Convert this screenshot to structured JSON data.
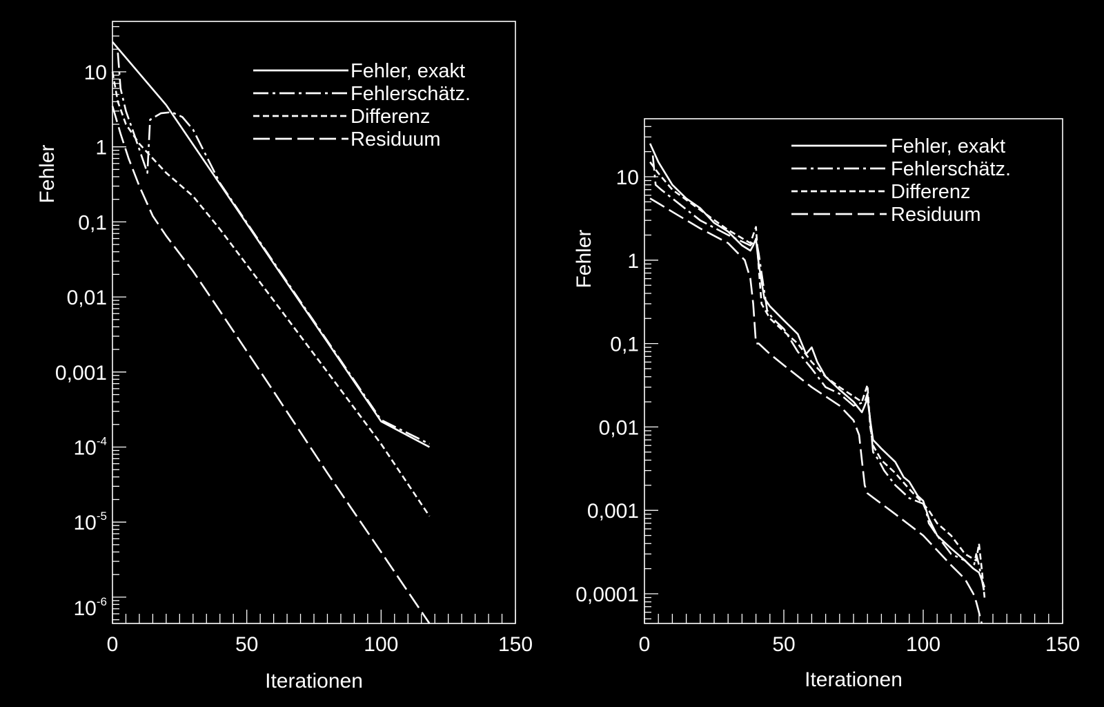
{
  "colors": {
    "background": "#000000",
    "foreground": "#ffffff"
  },
  "chart_data": [
    {
      "type": "line",
      "title": "",
      "xlabel": "Iterationen",
      "ylabel": "Fehler",
      "xlim": [
        0,
        150
      ],
      "ylim": [
        1e-06,
        50
      ],
      "yscale": "log",
      "grid": false,
      "legend_position": "top-right",
      "x_tick_labels": [
        "0",
        "50",
        "100",
        "150"
      ],
      "y_tick_labels": [
        {
          "base": "10",
          "exp": "-6"
        },
        {
          "base": "10",
          "exp": "-5"
        },
        {
          "base": "10",
          "exp": "-4"
        },
        {
          "base": "0,001",
          "exp": ""
        },
        {
          "base": "0,01",
          "exp": ""
        },
        {
          "base": "0,1",
          "exp": ""
        },
        {
          "base": "1",
          "exp": ""
        },
        {
          "base": "10",
          "exp": ""
        }
      ],
      "series": [
        {
          "name": "Fehler, exakt",
          "dash": "solid",
          "x": [
            0,
            20,
            40,
            60,
            80,
            100,
            118
          ],
          "y": [
            25,
            3.6,
            0.32,
            0.028,
            0.0025,
            0.00022,
            0.0001
          ]
        },
        {
          "name": "Fehlerschätz.",
          "dash": "dashdot",
          "x": [
            2,
            3,
            5,
            8,
            13,
            14,
            18,
            22,
            26,
            30,
            40,
            60,
            80,
            100,
            118
          ],
          "y": [
            18,
            6,
            3,
            1.5,
            0.45,
            2.3,
            2.8,
            2.9,
            2.5,
            1.7,
            0.33,
            0.029,
            0.0026,
            0.00023,
            0.00011
          ]
        },
        {
          "name": "Differenz",
          "dash": "dashed",
          "x": [
            0,
            2,
            5,
            10,
            15,
            20,
            30,
            40,
            60,
            80,
            100,
            118
          ],
          "y": [
            10,
            4,
            2,
            1.1,
            0.7,
            0.45,
            0.22,
            0.08,
            0.009,
            0.001,
            0.00011,
            1.2e-05
          ]
        },
        {
          "name": "Residuum",
          "dash": "longdash",
          "x": [
            0,
            3,
            6,
            10,
            15,
            20,
            30,
            40,
            60,
            80,
            100,
            118
          ],
          "y": [
            3.5,
            1.5,
            0.7,
            0.3,
            0.12,
            0.065,
            0.022,
            0.0065,
            0.00055,
            4.5e-05,
            4e-06,
            1.6e-07
          ]
        }
      ]
    },
    {
      "type": "line",
      "title": "",
      "xlabel": "Iterationen",
      "ylabel": "Fehler",
      "xlim": [
        0,
        150
      ],
      "ylim": [
        5e-05,
        50
      ],
      "yscale": "log",
      "grid": false,
      "legend_position": "top-right",
      "x_tick_labels": [
        "0",
        "50",
        "100",
        "150"
      ],
      "y_tick_labels": [
        {
          "base": "0,0001",
          "exp": ""
        },
        {
          "base": "0,001",
          "exp": ""
        },
        {
          "base": "0,01",
          "exp": ""
        },
        {
          "base": "0,1",
          "exp": ""
        },
        {
          "base": "1",
          "exp": ""
        },
        {
          "base": "10",
          "exp": ""
        }
      ],
      "series": [
        {
          "name": "Fehler, exakt",
          "dash": "solid",
          "x": [
            2,
            5,
            10,
            15,
            20,
            25,
            30,
            35,
            38,
            39,
            40,
            41,
            43,
            45,
            50,
            55,
            58,
            60,
            62,
            65,
            70,
            75,
            78,
            79,
            80,
            81,
            82,
            85,
            90,
            93,
            95,
            98,
            100,
            102,
            105,
            110,
            115,
            118,
            120,
            122
          ],
          "y": [
            25,
            15,
            8,
            5.5,
            4.2,
            2.8,
            2.2,
            1.5,
            1.3,
            1.5,
            1.8,
            0.9,
            0.35,
            0.28,
            0.19,
            0.13,
            0.075,
            0.09,
            0.06,
            0.04,
            0.028,
            0.02,
            0.015,
            0.018,
            0.022,
            0.012,
            0.007,
            0.0055,
            0.0038,
            0.0025,
            0.0022,
            0.0015,
            0.0013,
            0.0008,
            0.0005,
            0.00035,
            0.00025,
            0.0002,
            0.00018,
            0.00012
          ]
        },
        {
          "name": "Fehlerschätz.",
          "dash": "dashdot",
          "x": [
            3,
            4,
            6,
            10,
            20,
            30,
            38,
            40,
            41,
            42,
            44,
            46,
            50,
            55,
            60,
            65,
            70,
            75,
            79,
            80,
            81,
            82,
            84,
            86,
            90,
            95,
            100,
            101,
            102,
            105,
            110,
            115,
            118,
            119,
            120,
            121,
            122
          ],
          "y": [
            18,
            8,
            7,
            5.5,
            3,
            2,
            1.5,
            1.8,
            1.2,
            0.7,
            0.25,
            0.2,
            0.15,
            0.08,
            0.05,
            0.03,
            0.025,
            0.018,
            0.02,
            0.025,
            0.012,
            0.005,
            0.004,
            0.003,
            0.002,
            0.0014,
            0.0012,
            0.001,
            0.0007,
            0.0005,
            0.0003,
            0.00025,
            0.0002,
            0.0003,
            0.00022,
            0.00015,
            0.0001
          ]
        },
        {
          "name": "Differenz",
          "dash": "dashed",
          "x": [
            2,
            5,
            10,
            20,
            30,
            38,
            40,
            41,
            42,
            45,
            50,
            55,
            60,
            65,
            70,
            78,
            80,
            81,
            82,
            85,
            90,
            95,
            100,
            102,
            105,
            110,
            115,
            119,
            120,
            121,
            122
          ],
          "y": [
            15,
            11,
            7,
            4,
            2.3,
            1.6,
            2.5,
            0.8,
            0.3,
            0.2,
            0.14,
            0.1,
            0.06,
            0.04,
            0.03,
            0.02,
            0.032,
            0.01,
            0.006,
            0.004,
            0.0028,
            0.0018,
            0.0012,
            0.001,
            0.0007,
            0.0005,
            0.0003,
            0.00025,
            0.0004,
            0.0002,
            9e-05
          ]
        },
        {
          "name": "Residuum",
          "dash": "longdash",
          "x": [
            2,
            5,
            10,
            20,
            30,
            36,
            38,
            39,
            40,
            41,
            45,
            50,
            60,
            70,
            75,
            77,
            78,
            79,
            80,
            85,
            90,
            100,
            110,
            115,
            118,
            119,
            120,
            121
          ],
          "y": [
            5.5,
            4.8,
            3.8,
            2.4,
            1.6,
            1,
            0.6,
            0.3,
            0.1,
            0.1,
            0.075,
            0.055,
            0.03,
            0.018,
            0.012,
            0.008,
            0.004,
            0.002,
            0.0016,
            0.0012,
            0.0009,
            0.0005,
            0.00022,
            0.00015,
            0.0001,
            8e-05,
            6e-05,
            4e-05
          ]
        }
      ]
    }
  ]
}
